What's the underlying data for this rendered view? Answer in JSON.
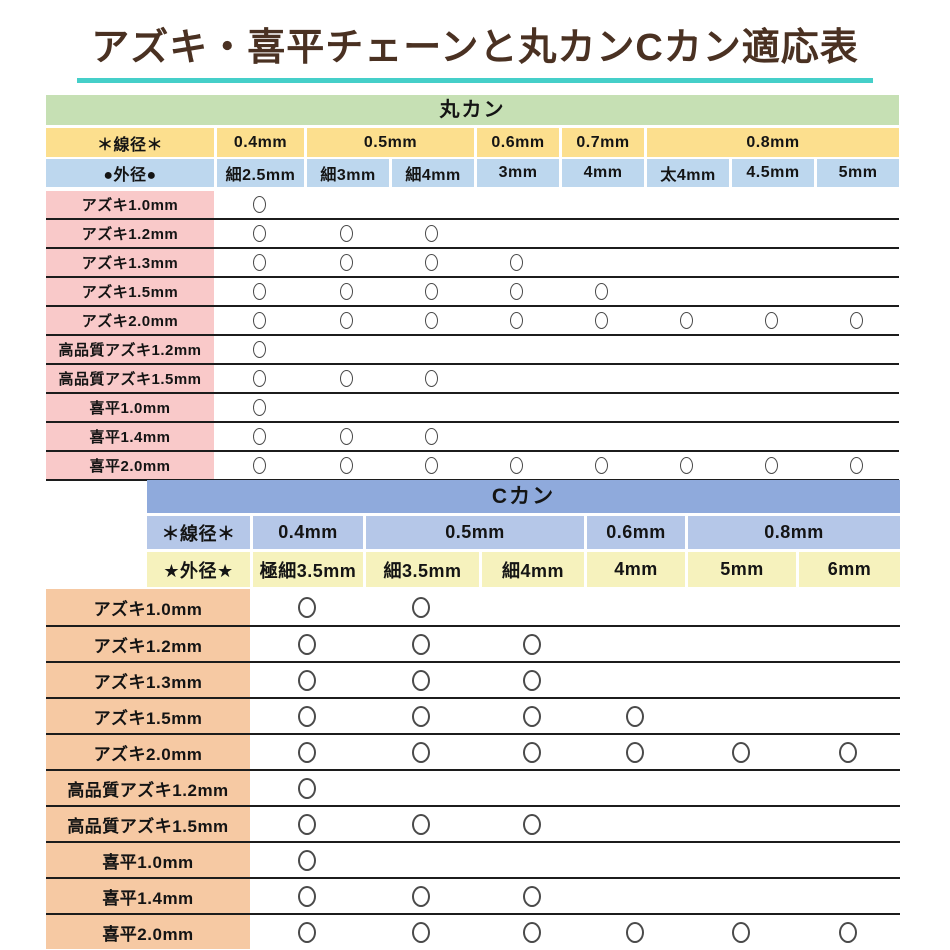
{
  "title": {
    "text": "アズキ・喜平チェーンと丸カンCカン適応表",
    "color": "#4a3122",
    "underline_color": "#45cfc9"
  },
  "mark_symbol": "○",
  "chart_data": [
    {
      "type": "table",
      "title": "丸カン",
      "wire_label": "＊線径＊",
      "outer_label": "●外径●",
      "colors": {
        "header_bg": "#c6e0b4",
        "wire_bg": "#fcdf8e",
        "outer_bg": "#bdd7ee",
        "label_bg": "#f9c9c9"
      },
      "wire_cols": [
        {
          "label": "0.4mm",
          "span": 1
        },
        {
          "label": "0.5mm",
          "span": 2
        },
        {
          "label": "0.6mm",
          "span": 1
        },
        {
          "label": "0.7mm",
          "span": 1
        },
        {
          "label": "0.8mm",
          "span": 3
        }
      ],
      "outer_cols": [
        "細2.5mm",
        "細3mm",
        "細4mm",
        "3mm",
        "4mm",
        "太4mm",
        "4.5mm",
        "5mm"
      ],
      "rows": [
        {
          "label": "アズキ1.0mm",
          "marks": [
            1,
            0,
            0,
            0,
            0,
            0,
            0,
            0
          ]
        },
        {
          "label": "アズキ1.2mm",
          "marks": [
            1,
            1,
            1,
            0,
            0,
            0,
            0,
            0
          ]
        },
        {
          "label": "アズキ1.3mm",
          "marks": [
            1,
            1,
            1,
            1,
            0,
            0,
            0,
            0
          ]
        },
        {
          "label": "アズキ1.5mm",
          "marks": [
            1,
            1,
            1,
            1,
            1,
            0,
            0,
            0
          ]
        },
        {
          "label": "アズキ2.0mm",
          "marks": [
            1,
            1,
            1,
            1,
            1,
            1,
            1,
            1
          ]
        },
        {
          "label": "高品質アズキ1.2mm",
          "marks": [
            1,
            0,
            0,
            0,
            0,
            0,
            0,
            0
          ]
        },
        {
          "label": "高品質アズキ1.5mm",
          "marks": [
            1,
            1,
            1,
            0,
            0,
            0,
            0,
            0
          ]
        },
        {
          "label": "喜平1.0mm",
          "marks": [
            1,
            0,
            0,
            0,
            0,
            0,
            0,
            0
          ]
        },
        {
          "label": "喜平1.4mm",
          "marks": [
            1,
            1,
            1,
            0,
            0,
            0,
            0,
            0
          ]
        },
        {
          "label": "喜平2.0mm",
          "marks": [
            1,
            1,
            1,
            1,
            1,
            1,
            1,
            1
          ]
        }
      ]
    },
    {
      "type": "table",
      "title": "Cカン",
      "wire_label": "＊線径＊",
      "outer_label": "★外径★",
      "colors": {
        "header_bg": "#8faadc",
        "wire_bg": "#b5c7e8",
        "outer_bg": "#f6f2bd",
        "label_bg": "#f6c9a3"
      },
      "wire_cols": [
        {
          "label": "0.4mm",
          "span": 1
        },
        {
          "label": "0.5mm",
          "span": 2
        },
        {
          "label": "0.6mm",
          "span": 1
        },
        {
          "label": "0.8mm",
          "span": 2
        }
      ],
      "outer_cols": [
        "極細3.5mm",
        "細3.5mm",
        "細4mm",
        "4mm",
        "5mm",
        "6mm"
      ],
      "rows": [
        {
          "label": "アズキ1.0mm",
          "marks": [
            1,
            1,
            0,
            0,
            0,
            0
          ]
        },
        {
          "label": "アズキ1.2mm",
          "marks": [
            1,
            1,
            1,
            0,
            0,
            0
          ]
        },
        {
          "label": "アズキ1.3mm",
          "marks": [
            1,
            1,
            1,
            0,
            0,
            0
          ]
        },
        {
          "label": "アズキ1.5mm",
          "marks": [
            1,
            1,
            1,
            1,
            0,
            0
          ]
        },
        {
          "label": "アズキ2.0mm",
          "marks": [
            1,
            1,
            1,
            1,
            1,
            1
          ]
        },
        {
          "label": "高品質アズキ1.2mm",
          "marks": [
            1,
            0,
            0,
            0,
            0,
            0
          ]
        },
        {
          "label": "高品質アズキ1.5mm",
          "marks": [
            1,
            1,
            1,
            0,
            0,
            0
          ]
        },
        {
          "label": "喜平1.0mm",
          "marks": [
            1,
            0,
            0,
            0,
            0,
            0
          ]
        },
        {
          "label": "喜平1.4mm",
          "marks": [
            1,
            1,
            1,
            0,
            0,
            0
          ]
        },
        {
          "label": "喜平2.0mm",
          "marks": [
            1,
            1,
            1,
            1,
            1,
            1
          ]
        }
      ]
    }
  ]
}
